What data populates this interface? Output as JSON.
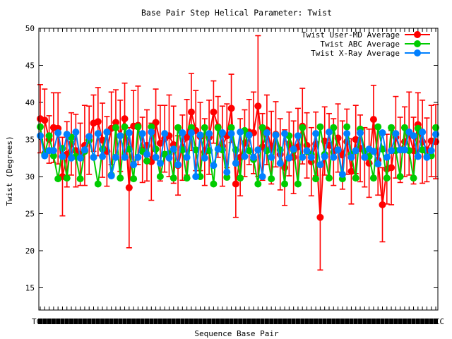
{
  "chart_data": {
    "type": "line",
    "title": "Base Pair Step Helical Parameter: Twist",
    "xlabel": "Sequence Base Pair",
    "ylabel": "Twist (Degrees)",
    "ylim": [
      12,
      50
    ],
    "yticks": [
      15,
      20,
      25,
      30,
      35,
      40,
      45,
      50
    ],
    "x_tick_first": "TC",
    "x_tick_last": "CC",
    "legend_position": "top-right",
    "grid": false,
    "error_bars": true,
    "series": [
      {
        "name": "Twist User-MD Average",
        "color": "#ff0000",
        "values": [
          37.8,
          37.6,
          35.0,
          36.6,
          36.5,
          30.0,
          33.0,
          34.4,
          33.5,
          33.0,
          34.2,
          34.9,
          37.2,
          37.4,
          34.9,
          33.4,
          36.5,
          37.3,
          35.5,
          37.8,
          28.5,
          36.8,
          36.9,
          33.6,
          34.2,
          32.0,
          37.3,
          34.5,
          35.1,
          35.5,
          34.3,
          31.5,
          33.9,
          35.3,
          38.7,
          36.2,
          35.4,
          33.3,
          35.3,
          38.7,
          36.7,
          34.1,
          35.5,
          39.2,
          29.0,
          32.6,
          34.5,
          36.0,
          35.9,
          39.5,
          34.0,
          36.3,
          33.9,
          35.7,
          33.0,
          31.2,
          34.4,
          32.6,
          34.0,
          36.8,
          34.2,
          32.0,
          34.4,
          24.5,
          34.8,
          34.2,
          33.3,
          35.2,
          32.9,
          34.7,
          30.7,
          35.0,
          33.8,
          32.6,
          31.8,
          37.7,
          32.2,
          26.2,
          31.0,
          31.2,
          35.3,
          33.6,
          34.7,
          35.8,
          33.5,
          37.0,
          34.7,
          33.6,
          34.8,
          34.7
        ],
        "errors": [
          4.6,
          4.2,
          3.2,
          4.7,
          4.8,
          5.3,
          4.4,
          4.2,
          4.9,
          4.2,
          5.4,
          4.6,
          3.8,
          4.6,
          5.0,
          4.7,
          4.9,
          4.4,
          4.8,
          4.8,
          8.1,
          4.8,
          5.3,
          4.4,
          4.8,
          5.2,
          4.5,
          5.1,
          4.5,
          5.5,
          5.2,
          4.0,
          4.4,
          5.1,
          5.2,
          5.4,
          4.6,
          4.5,
          5.0,
          4.2,
          4.1,
          5.4,
          4.3,
          4.6,
          4.5,
          5.2,
          4.5,
          4.4,
          5.5,
          9.5,
          4.5,
          4.7,
          4.9,
          4.4,
          4.8,
          5.1,
          4.3,
          4.9,
          5.2,
          5.1,
          4.4,
          4.6,
          4.3,
          7.1,
          4.6,
          4.3,
          4.5,
          4.6,
          4.6,
          4.4,
          4.4,
          4.6,
          4.5,
          4.0,
          4.6,
          4.6,
          4.7,
          5.0,
          4.7,
          5.0,
          5.5,
          4.4,
          4.7,
          5.6,
          4.5,
          4.3,
          5.6,
          4.3,
          4.8,
          5.0
        ]
      },
      {
        "name": "Twist ABC Average",
        "color": "#00cc00",
        "values": [
          36.7,
          33.0,
          35.5,
          32.8,
          29.7,
          33.8,
          29.8,
          35.3,
          32.7,
          29.7,
          33.4,
          34.9,
          32.6,
          29.0,
          33.7,
          36.0,
          30.2,
          36.6,
          29.8,
          36.7,
          33.7,
          29.7,
          36.7,
          33.4,
          32.1,
          36.7,
          33.7,
          30.0,
          33.0,
          33.1,
          29.8,
          36.6,
          33.6,
          29.8,
          36.6,
          33.6,
          30.0,
          36.6,
          33.5,
          29.0,
          36.6,
          33.6,
          29.9,
          36.6,
          33.6,
          29.8,
          36.2,
          33.5,
          32.3,
          29.0,
          36.6,
          33.5,
          29.7,
          35.6,
          33.6,
          29.0,
          35.5,
          33.6,
          29.0,
          36.6,
          33.4,
          33.0,
          29.7,
          36.7,
          33.0,
          29.8,
          36.6,
          33.6,
          29.7,
          36.7,
          33.0,
          29.8,
          36.4,
          33.4,
          32.7,
          29.8,
          36.7,
          33.7,
          29.8,
          36.6,
          33.5,
          30.0,
          36.6,
          33.5,
          29.8,
          36.5,
          33.6,
          32.7,
          32.8,
          36.6
        ]
      },
      {
        "name": "Twist X-Ray Average",
        "color": "#0080ff",
        "values": [
          35.5,
          32.8,
          33.5,
          33.5,
          35.9,
          32.7,
          35.7,
          32.5,
          36.0,
          32.5,
          33.6,
          35.4,
          32.6,
          35.8,
          32.7,
          36.0,
          30.1,
          32.6,
          35.5,
          32.6,
          35.9,
          31.6,
          32.6,
          35.8,
          33.0,
          36.0,
          32.6,
          31.8,
          35.8,
          32.5,
          33.7,
          31.6,
          35.9,
          32.6,
          35.9,
          30.0,
          35.6,
          32.5,
          35.8,
          31.5,
          33.7,
          35.9,
          30.6,
          35.8,
          31.8,
          36.0,
          32.7,
          35.6,
          32.6,
          33.6,
          30.0,
          35.9,
          32.6,
          35.6,
          31.8,
          35.8,
          32.5,
          33.7,
          35.5,
          32.6,
          33.5,
          32.6,
          35.8,
          31.6,
          32.7,
          36.0,
          32.6,
          33.6,
          30.3,
          35.8,
          32.6,
          33.5,
          35.9,
          32.6,
          33.7,
          33.4,
          31.7,
          35.9,
          32.6,
          33.5,
          35.8,
          33.6,
          33.6,
          36.0,
          35.5,
          32.7,
          36.0,
          32.6,
          33.5,
          35.7
        ]
      }
    ]
  }
}
